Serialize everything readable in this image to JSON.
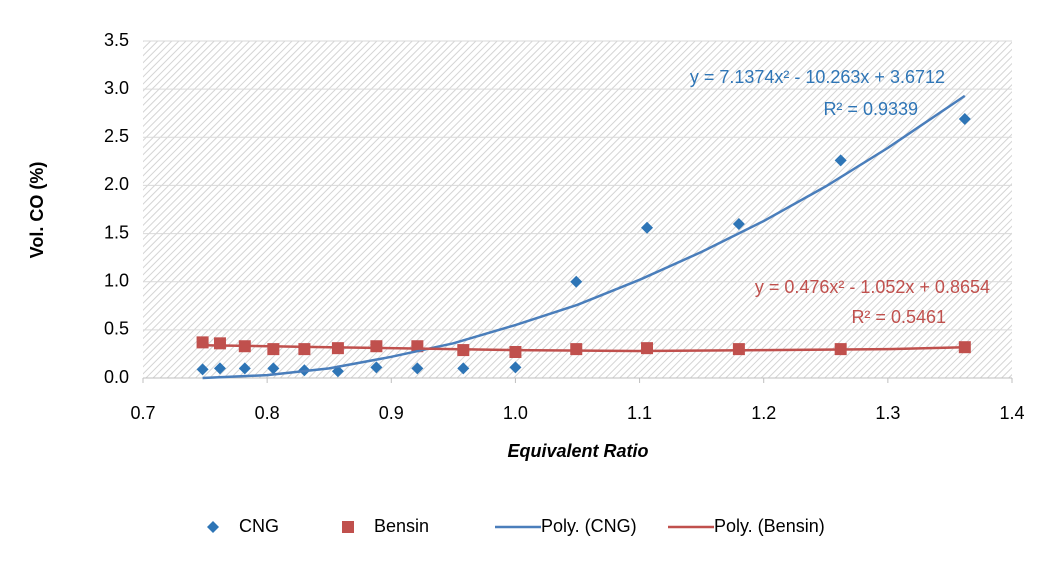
{
  "chart_data": {
    "type": "scatter",
    "x_label": "Equivalent Ratio",
    "y_label": "Vol. CO (%)",
    "xlim": [
      0.7,
      1.4
    ],
    "ylim": [
      0,
      3.5
    ],
    "xticks": [
      0.7,
      0.8,
      0.9,
      {
        "value": 1,
        "label": "1.0"
      },
      1.1,
      1.2,
      1.3,
      1.4
    ],
    "yticks": [
      {
        "value": 0,
        "label": "0.0"
      },
      0.5,
      {
        "value": 1,
        "label": "1.0"
      },
      1.5,
      {
        "value": 2,
        "label": "2.0"
      },
      2.5,
      {
        "value": 3,
        "label": "3.0"
      },
      3.5
    ],
    "grid": true,
    "legend": "bottom",
    "series": [
      {
        "name": "CNG",
        "color": "#2e75b6",
        "marker": "diamond",
        "x": [
          0.748,
          0.762,
          0.782,
          0.805,
          0.83,
          0.857,
          0.888,
          0.921,
          0.958,
          1.0,
          1.049,
          1.106,
          1.18,
          1.262,
          1.362
        ],
        "values": [
          0.09,
          0.1,
          0.1,
          0.1,
          0.08,
          0.07,
          0.11,
          0.1,
          0.1,
          0.11,
          1.0,
          1.56,
          1.6,
          2.26,
          2.69
        ]
      },
      {
        "name": "Bensin",
        "color": "#c0504d",
        "marker": "square",
        "x": [
          0.748,
          0.762,
          0.782,
          0.805,
          0.83,
          0.857,
          0.888,
          0.921,
          0.958,
          1.0,
          1.049,
          1.106,
          1.18,
          1.262,
          1.362
        ],
        "values": [
          0.37,
          0.36,
          0.33,
          0.3,
          0.3,
          0.31,
          0.33,
          0.33,
          0.29,
          0.27,
          0.3,
          0.31,
          0.3,
          0.3,
          0.32
        ]
      },
      {
        "name": "Poly. (CNG)",
        "type": "line",
        "color": "#4a7ebb",
        "x": [
          0.748,
          0.8,
          0.85,
          0.9,
          0.95,
          1.0,
          1.05,
          1.1,
          1.15,
          1.2,
          1.25,
          1.3,
          1.362
        ],
        "values": [
          0,
          0.03,
          0.1,
          0.22,
          0.36,
          0.55,
          0.76,
          1.02,
          1.31,
          1.63,
          1.99,
          2.39,
          2.93
        ]
      },
      {
        "name": "Poly. (Bensin)",
        "type": "line",
        "color": "#c0504d",
        "x": [
          0.748,
          0.85,
          1.0,
          1.1,
          1.2,
          1.3,
          1.362
        ],
        "values": [
          0.34,
          0.32,
          0.29,
          0.28,
          0.29,
          0.3,
          0.32
        ]
      }
    ],
    "annotations": [
      {
        "text": "y = 7.1374x² - 10.263x + 3.6712",
        "color": "#2e75b6"
      },
      {
        "text": "R² = 0.9339",
        "color": "#2e75b6"
      },
      {
        "text": "y = 0.476x² - 1.052x + 0.8654",
        "color": "#c0504d"
      },
      {
        "text": "R² = 0.5461",
        "color": "#c0504d"
      }
    ]
  }
}
